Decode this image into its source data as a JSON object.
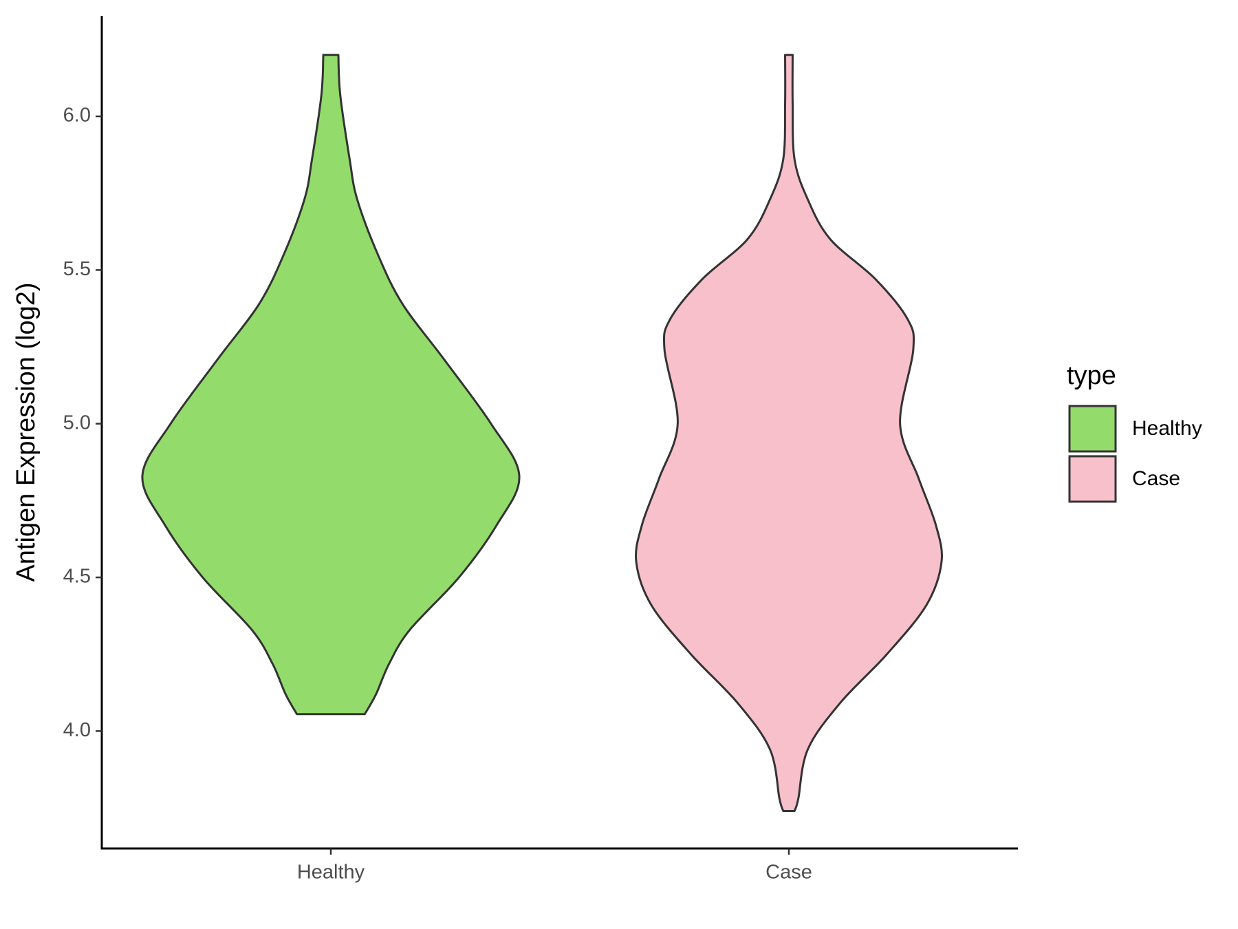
{
  "chart_data": {
    "type": "violin",
    "y_label": "Antigen Expression (log2)",
    "categories": [
      "Healthy",
      "Case"
    ],
    "legend_title": "type",
    "ylim": [
      3.618,
      6.327
    ],
    "yticks": [
      {
        "value": 4,
        "label": "4.0"
      },
      {
        "value": 4.5,
        "label": "4.5"
      },
      {
        "value": 5,
        "label": "5.0"
      },
      {
        "value": 5.5,
        "label": "5.5"
      },
      {
        "value": 6,
        "label": "6.0"
      }
    ],
    "series": [
      {
        "name": "Healthy",
        "color": "#93dc6b",
        "y": [
          6.2,
          6.07,
          5.86,
          5.73,
          5.55,
          5.39,
          5.21,
          5.0,
          4.83,
          4.67,
          4.5,
          4.33,
          4.22,
          4.12,
          4.055
        ],
        "density": [
          0.04,
          0.05,
          0.1,
          0.14,
          0.25,
          0.38,
          0.6,
          0.85,
          1.0,
          0.88,
          0.68,
          0.42,
          0.31,
          0.24,
          0.18
        ]
      },
      {
        "name": "Case",
        "color": "#f7c0cb",
        "y": [
          6.2,
          6.04,
          5.86,
          5.73,
          5.6,
          5.47,
          5.34,
          5.24,
          5.0,
          4.82,
          4.67,
          4.55,
          4.41,
          4.25,
          4.09,
          3.94,
          3.78,
          3.74
        ],
        "density": [
          0.02,
          0.02,
          0.03,
          0.1,
          0.22,
          0.46,
          0.63,
          0.66,
          0.59,
          0.69,
          0.78,
          0.81,
          0.73,
          0.52,
          0.27,
          0.1,
          0.05,
          0.03
        ]
      }
    ]
  }
}
